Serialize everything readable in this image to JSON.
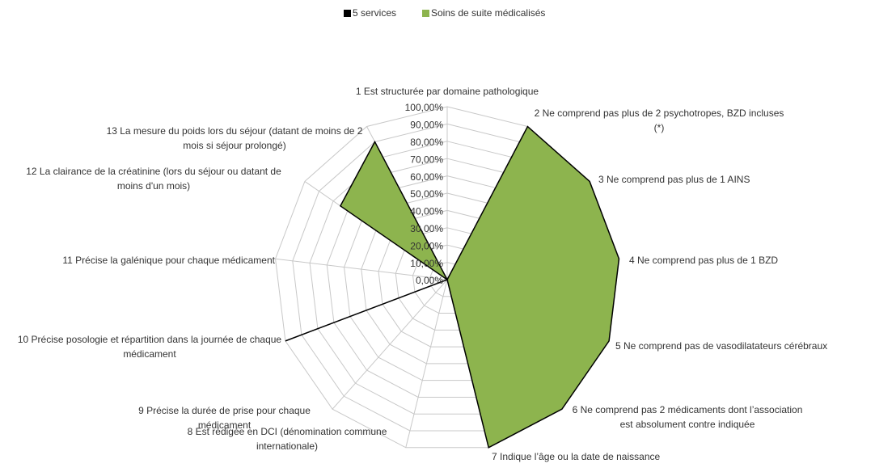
{
  "chart_data": {
    "type": "radar",
    "categories": [
      "1 Est structurée par domaine pathologique",
      "2 Ne comprend pas plus de 2 psychotropes, BZD incluses (*)",
      "3 Ne comprend pas plus de 1 AINS",
      "4 Ne comprend pas plus de 1 BZD",
      "5 Ne comprend pas de vasodilatateurs cérébraux",
      "6 Ne comprend pas 2 médicaments dont l’association est absolument contre indiquée",
      "7 Indique l’âge ou la date de naissance",
      "8 Est rédigée en DCI (dénomination commune internationale)",
      "9 Précise la durée de prise pour chaque médicament",
      "10 Précise posologie et répartition dans la journée de chaque médicament",
      "11 Précise la galénique  pour chaque médicament",
      "12 La clairance de la créatinine (lors du séjour ou datant de moins d'un mois)",
      "13 La mesure du poids lors du séjour (datant de moins de 2 mois si séjour prolongé)"
    ],
    "series": [
      {
        "name": "5 services",
        "color": "#000000",
        "values": [
          0,
          100,
          100,
          100,
          100,
          100,
          100,
          0,
          0,
          100,
          0,
          75,
          90
        ]
      },
      {
        "name": "Soins de suite médicalisés",
        "color": "#8db44e",
        "values": [
          0,
          100,
          100,
          100,
          100,
          100,
          100,
          0,
          0,
          0,
          0,
          75,
          90
        ]
      }
    ],
    "ylim": [
      0,
      100
    ],
    "yticks": [
      {
        "value": 0,
        "label": "0,00%"
      },
      {
        "value": 10,
        "label": "10,00%"
      },
      {
        "value": 20,
        "label": "20,00%"
      },
      {
        "value": 30,
        "label": "30,00%"
      },
      {
        "value": 40,
        "label": "40,00%"
      },
      {
        "value": 50,
        "label": "50,00%"
      },
      {
        "value": 60,
        "label": "60,00%"
      },
      {
        "value": 70,
        "label": "70,00%"
      },
      {
        "value": 80,
        "label": "80,00%"
      },
      {
        "value": 90,
        "label": "90,00%"
      },
      {
        "value": 100,
        "label": "100,00%"
      }
    ],
    "legend": "top",
    "grid": true
  }
}
